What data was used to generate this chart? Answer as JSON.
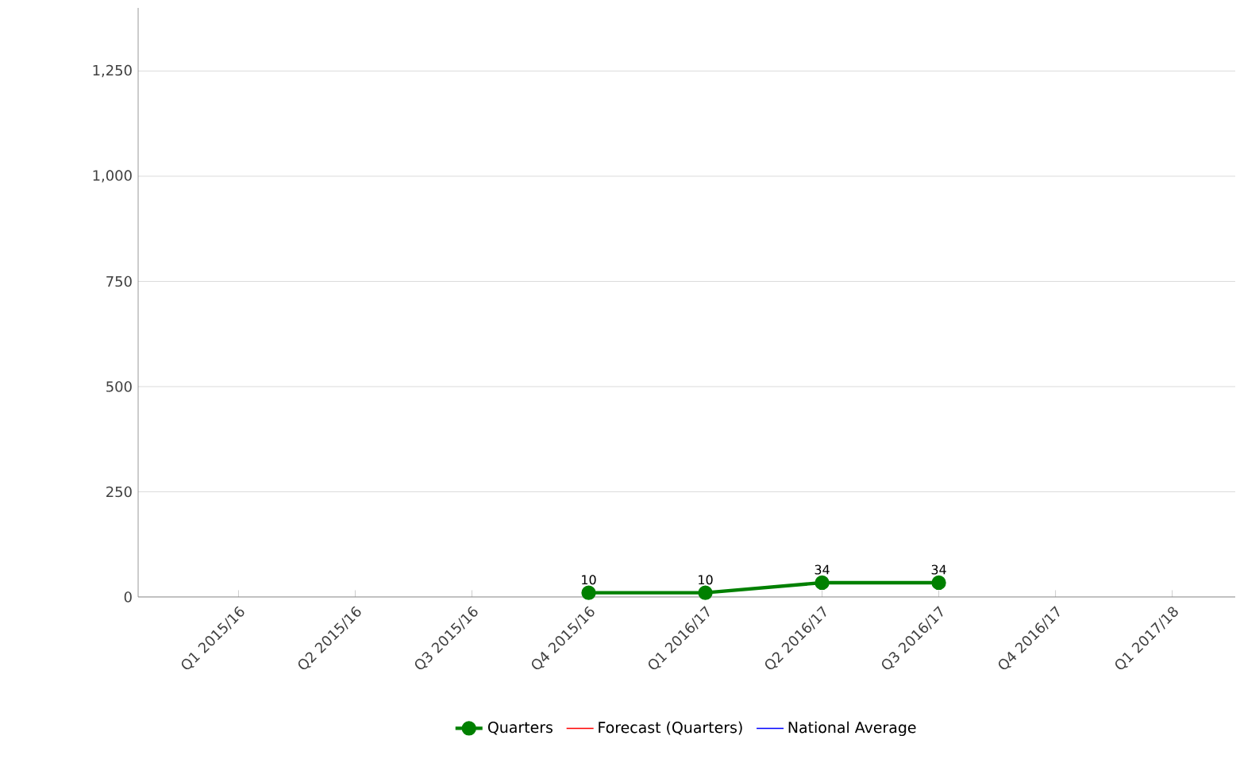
{
  "chart_data": {
    "type": "line",
    "categories": [
      "Q1 2015/16",
      "Q2 2015/16",
      "Q3 2015/16",
      "Q4 2015/16",
      "Q1 2016/17",
      "Q2 2016/17",
      "Q3 2016/17",
      "Q4 2016/17",
      "Q1 2017/18"
    ],
    "series": [
      {
        "name": "Quarters",
        "color": "#008000",
        "marker": "circle",
        "values": [
          null,
          null,
          null,
          10,
          10,
          34,
          34,
          null,
          null
        ]
      },
      {
        "name": "Forecast (Quarters)",
        "color": "#ff0000",
        "marker": "none",
        "values": [
          null,
          null,
          null,
          null,
          null,
          null,
          null,
          null,
          null
        ]
      },
      {
        "name": "National Average",
        "color": "#0000ff",
        "marker": "none",
        "values": [
          null,
          null,
          null,
          null,
          null,
          null,
          null,
          null,
          null
        ]
      }
    ],
    "ylim": [
      0,
      1400
    ],
    "yticks": [
      0,
      {
        "value": 250,
        "label": "250"
      },
      {
        "value": 500,
        "label": "500"
      },
      {
        "value": 750,
        "label": "750"
      },
      {
        "value": 1000,
        "label": "1,000"
      },
      {
        "value": 1250,
        "label": "1,250"
      }
    ],
    "grid": "y",
    "legend": "bottom",
    "data_labels": true
  }
}
